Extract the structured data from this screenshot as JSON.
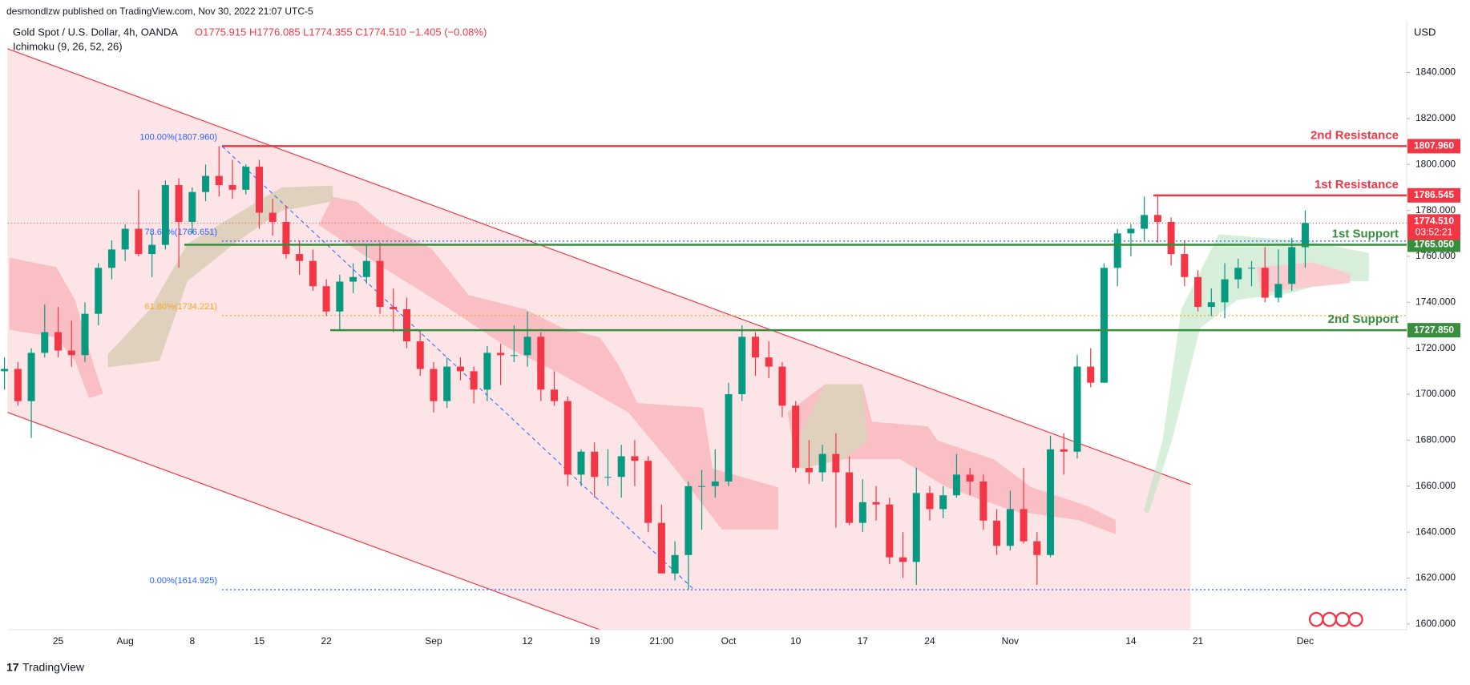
{
  "header": {
    "publisher": "desmondlzw published on TradingView.com, Nov 30, 2022 21:07 UTC-5",
    "symbol": "Gold Spot / U.S. Dollar, 4h, OANDA",
    "ohlc": "O1775.915 H1776.085 L1774.355 C1774.510 −1.405 (−0.08%)",
    "indicator": "Ichimoku (9, 26, 52, 26)",
    "currency": "USD"
  },
  "footer": {
    "brand": "TradingView"
  },
  "chart_data": {
    "type": "candlestick",
    "up_color": "#089981",
    "down_color": "#f23645",
    "grid": false,
    "categories": [
      null,
      null,
      null,
      null,
      "25",
      null,
      null,
      null,
      null,
      "Aug",
      null,
      null,
      null,
      null,
      "8",
      null,
      null,
      null,
      null,
      "15",
      null,
      null,
      null,
      null,
      "22",
      null,
      null,
      null,
      null,
      null,
      null,
      null,
      "Sep",
      null,
      null,
      null,
      null,
      null,
      null,
      "12",
      null,
      null,
      null,
      null,
      "19",
      null,
      null,
      null,
      null,
      "21:00",
      null,
      null,
      null,
      null,
      "Oct",
      null,
      null,
      null,
      null,
      "10",
      null,
      null,
      null,
      null,
      "17",
      null,
      null,
      null,
      null,
      "24",
      null,
      null,
      null,
      null,
      null,
      "Nov",
      null,
      null,
      null,
      null,
      null,
      null,
      null,
      null,
      "14",
      null,
      null,
      null,
      null,
      "21",
      null,
      null,
      null,
      null,
      null,
      null,
      null,
      "Dec"
    ],
    "open": [
      1710,
      1711,
      1697,
      1718,
      1727,
      1719,
      1717,
      1735,
      1755,
      1763,
      1772,
      1761,
      1765,
      1791,
      1775,
      1788,
      1795,
      1791,
      1789,
      1799,
      1779,
      1775,
      1761,
      1758,
      1747,
      1736,
      1749,
      1751,
      1758,
      1738,
      1737,
      1723,
      1711,
      1697,
      1712,
      1710,
      1702,
      1718,
      1717,
      1717,
      1725,
      1702,
      1697,
      1665,
      1675,
      1664,
      1664,
      1673,
      1671,
      1644,
      1622,
      1630,
      1660,
      1660,
      1662,
      1700,
      1725,
      1716,
      1712,
      1695,
      1668,
      1666,
      1674,
      1666,
      1644,
      1653,
      1652,
      1629,
      1627,
      1657,
      1650,
      1656,
      1665,
      1662,
      1645,
      1634,
      1650,
      1636,
      1630,
      1676,
      1675,
      1712,
      1705,
      1755,
      1770,
      1772,
      1778,
      1775,
      1761,
      1751,
      1738,
      1740,
      1750,
      1755,
      1755,
      1742,
      1748,
      1764
    ],
    "high": [
      1716,
      1714,
      1720,
      1739,
      1738,
      1732,
      1740,
      1757,
      1767,
      1774,
      1789,
      1770,
      1793,
      1794,
      1790,
      1800,
      1808,
      1802,
      1800,
      1802,
      1785,
      1782,
      1767,
      1763,
      1750,
      1752,
      1757,
      1765,
      1766,
      1746,
      1742,
      1728,
      1714,
      1716,
      1716,
      1712,
      1721,
      1722,
      1730,
      1736,
      1727,
      1710,
      1699,
      1676,
      1679,
      1676,
      1678,
      1680,
      1673,
      1652,
      1636,
      1662,
      1667,
      1676,
      1705,
      1730,
      1727,
      1723,
      1714,
      1697,
      1680,
      1678,
      1683,
      1673,
      1663,
      1660,
      1655,
      1640,
      1668,
      1660,
      1660,
      1674,
      1668,
      1665,
      1650,
      1658,
      1668,
      1640,
      1682,
      1683,
      1717,
      1720,
      1757,
      1772,
      1774,
      1786,
      1787,
      1777,
      1767,
      1754,
      1746,
      1757,
      1759,
      1758,
      1764,
      1763,
      1768,
      1780
    ],
    "low": [
      1702,
      1695,
      1681,
      1716,
      1716,
      1712,
      1714,
      1730,
      1750,
      1758,
      1760,
      1751,
      1763,
      1755,
      1770,
      1784,
      1786,
      1785,
      1787,
      1772,
      1769,
      1759,
      1752,
      1745,
      1734,
      1728,
      1744,
      1748,
      1735,
      1727,
      1720,
      1708,
      1692,
      1694,
      1706,
      1696,
      1697,
      1704,
      1714,
      1712,
      1697,
      1695,
      1660,
      1660,
      1655,
      1660,
      1655,
      1660,
      1640,
      1623,
      1619,
      1615,
      1641,
      1655,
      1660,
      1697,
      1708,
      1707,
      1690,
      1666,
      1661,
      1662,
      1642,
      1643,
      1640,
      1645,
      1626,
      1620,
      1617,
      1645,
      1646,
      1655,
      1656,
      1641,
      1630,
      1632,
      1635,
      1617,
      1629,
      1665,
      1672,
      1703,
      1705,
      1747,
      1760,
      1767,
      1766,
      1756,
      1747,
      1736,
      1734,
      1733,
      1746,
      1747,
      1740,
      1740,
      1745,
      1755
    ],
    "close": [
      1711,
      1697,
      1718,
      1727,
      1719,
      1717,
      1735,
      1755,
      1763,
      1772,
      1761,
      1765,
      1791,
      1775,
      1788,
      1795,
      1791,
      1789,
      1799,
      1779,
      1775,
      1761,
      1758,
      1747,
      1736,
      1749,
      1751,
      1758,
      1738,
      1737,
      1723,
      1711,
      1697,
      1712,
      1710,
      1702,
      1718,
      1717,
      1717,
      1725,
      1702,
      1697,
      1665,
      1675,
      1664,
      1664,
      1673,
      1671,
      1644,
      1622,
      1630,
      1660,
      1660,
      1662,
      1700,
      1725,
      1716,
      1712,
      1695,
      1668,
      1666,
      1674,
      1666,
      1644,
      1653,
      1652,
      1629,
      1627,
      1657,
      1650,
      1656,
      1665,
      1662,
      1645,
      1634,
      1650,
      1636,
      1630,
      1676,
      1675,
      1712,
      1705,
      1755,
      1770,
      1772,
      1778,
      1775,
      1761,
      1751,
      1738,
      1740,
      1750,
      1755,
      1755,
      1742,
      1748,
      1764,
      1774.51
    ],
    "ylim": [
      1597.5,
      1862.5
    ],
    "yticks": [
      {
        "value": 1600,
        "label": "1600.000"
      },
      {
        "value": 1620,
        "label": "1620.000"
      },
      {
        "value": 1640,
        "label": "1640.000"
      },
      {
        "value": 1660,
        "label": "1660.000"
      },
      {
        "value": 1680,
        "label": "1680.000"
      },
      {
        "value": 1700,
        "label": "1700.000"
      },
      {
        "value": 1720,
        "label": "1720.000"
      },
      {
        "value": 1740,
        "label": "1740.000"
      },
      {
        "value": 1760,
        "label": "1760.000"
      },
      {
        "value": 1780,
        "label": "1780.000"
      },
      {
        "value": 1800,
        "label": "1800.000"
      },
      {
        "value": 1820,
        "label": "1820.000"
      },
      {
        "value": 1840,
        "label": "1840.000"
      }
    ],
    "levels": [
      {
        "name": "2nd Resistance",
        "value": 1807.96,
        "label": "1807.960",
        "color": "#f23645"
      },
      {
        "name": "1st Resistance",
        "value": 1786.545,
        "label": "1786.545",
        "color": "#f23645"
      },
      {
        "name": "1st Support",
        "value": 1765.05,
        "label": "1765.050",
        "color": "#388e3c"
      },
      {
        "name": "2nd Support",
        "value": 1727.85,
        "label": "1727.850",
        "color": "#388e3c"
      }
    ],
    "fib": [
      {
        "label": "100.00%(1807.960)",
        "value": 1807.96,
        "color": "#2962ff"
      },
      {
        "label": "78.60%(1766.651)",
        "value": 1766.651,
        "color": "#2962ff"
      },
      {
        "label": "61.80%(1734.221)",
        "value": 1734.221,
        "color": "#f5a623"
      },
      {
        "label": "0.00%(1614.925)",
        "value": 1614.925,
        "color": "#2962ff"
      }
    ],
    "last_price": {
      "value": 1774.51,
      "label": "1774.510",
      "countdown": "03:52:21",
      "color": "#f23645"
    }
  }
}
